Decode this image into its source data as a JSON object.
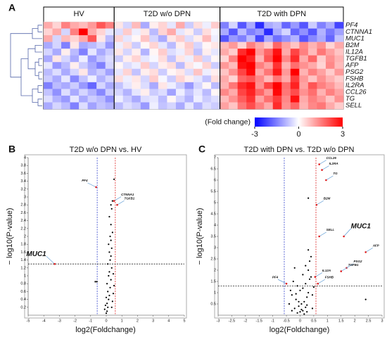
{
  "chart_data": [
    {
      "type": "heatmap",
      "panel": "A",
      "rows": [
        "PF4",
        "CTNNA1",
        "MUC1",
        "B2M",
        "IL12A",
        "TGFB1",
        "AFP",
        "PSG2",
        "FSHB",
        "IL2RA",
        "CCL26",
        "TG",
        "SELL"
      ],
      "groups": [
        {
          "name": "HV",
          "values": [
            [
              1,
              0.5,
              1.5,
              1,
              0.8,
              1.2,
              2,
              1.5
            ],
            [
              0.5,
              1,
              -0.5,
              1.5,
              3,
              1,
              0.5,
              -0.3
            ],
            [
              1,
              -0.5,
              0.8,
              0.5,
              1,
              2,
              0.3,
              -0.8
            ],
            [
              -1,
              -0.5,
              -1.5,
              0.3,
              -1,
              -0.8,
              -0.5,
              -1.2
            ],
            [
              -0.5,
              -1,
              0.2,
              -0.8,
              -1.5,
              -0.3,
              -1,
              -0.6
            ],
            [
              -1,
              0.3,
              -0.5,
              -1,
              -0.2,
              -1.2,
              -0.7,
              -0.4
            ],
            [
              -0.3,
              -1.2,
              -0.8,
              0.2,
              -0.6,
              -1,
              -1.5,
              -0.5
            ],
            [
              -0.8,
              -0.4,
              -1,
              -0.5,
              0.3,
              -0.9,
              -0.6,
              -1.1
            ],
            [
              -0.6,
              -1,
              -0.3,
              -1.4,
              -0.7,
              -0.2,
              -0.9,
              -0.5
            ],
            [
              -1.5,
              -0.8,
              -1,
              -0.6,
              -1.2,
              -1.8,
              -0.5,
              -1
            ],
            [
              -0.7,
              -1.3,
              -0.4,
              -1,
              -0.5,
              -0.9,
              -1.4,
              -0.6
            ],
            [
              -0.4,
              -0.9,
              -1.2,
              -0.3,
              -1,
              -0.6,
              -0.8,
              -1.3
            ],
            [
              -1,
              -0.5,
              -0.8,
              -1.5,
              -0.4,
              -1.1,
              -0.7,
              -0.9
            ]
          ]
        },
        {
          "name": "T2D w/o DPN",
          "values": [
            [
              0.3,
              -0.5,
              0.8,
              -1,
              0.2,
              0.5,
              -0.3,
              1,
              -0.6,
              0.4,
              -0.2,
              0.6
            ],
            [
              -0.4,
              0.6,
              -0.2,
              0.3,
              -0.8,
              0.5,
              1,
              -0.3,
              0.2,
              -0.6,
              0.4,
              -0.1
            ],
            [
              0.5,
              -0.3,
              0.1,
              0.7,
              -0.5,
              -1,
              0.3,
              0.6,
              -0.4,
              0.2,
              0.8,
              -0.2
            ],
            [
              -0.2,
              0.4,
              -0.6,
              0.1,
              0.5,
              -0.3,
              -0.8,
              0.2,
              0.6,
              -0.5,
              0.1,
              0.3
            ],
            [
              0.3,
              -0.5,
              0.2,
              -0.9,
              0.1,
              0.6,
              -0.4,
              -0.2,
              0.5,
              -0.7,
              0.2,
              -0.3
            ],
            [
              -0.6,
              0.2,
              0.5,
              -0.3,
              -0.1,
              0.4,
              -0.7,
              0.3,
              -0.2,
              0.6,
              -0.5,
              0.1
            ],
            [
              0.1,
              -0.4,
              -0.2,
              0.6,
              -0.5,
              0.2,
              0.4,
              -0.8,
              0.3,
              -0.1,
              0.5,
              -0.6
            ],
            [
              -0.3,
              0.5,
              -0.7,
              0.2,
              0.4,
              -0.6,
              0.1,
              0.3,
              -0.4,
              0.7,
              -0.2,
              0.2
            ],
            [
              0.4,
              -0.2,
              0.3,
              -0.5,
              0.6,
              -0.1,
              -0.6,
              0.5,
              0.2,
              -0.3,
              -0.7,
              0.4
            ],
            [
              -0.7,
              -0.3,
              0.2,
              -0.4,
              -1,
              0.3,
              -0.2,
              -0.6,
              -1.2,
              -0.5,
              0.1,
              -0.8
            ],
            [
              -0.5,
              -0.9,
              -0.3,
              0.2,
              -0.6,
              -0.4,
              -1.1,
              -0.2,
              -0.7,
              -0.3,
              -0.8,
              0.1
            ],
            [
              -0.2,
              -0.6,
              -1,
              -0.4,
              -0.3,
              -0.8,
              0.1,
              -0.5,
              -0.9,
              -0.2,
              -0.6,
              -0.4
            ],
            [
              -0.8,
              -0.4,
              -0.6,
              -1.2,
              -0.2,
              -0.7,
              -0.5,
              -1,
              -0.3,
              -0.9,
              -0.4,
              -0.6
            ]
          ]
        },
        {
          "name": "T2D with DPN",
          "values": [
            [
              -1.5,
              -0.5,
              -2,
              -1,
              -2.5,
              -1,
              -0.8,
              -1.8,
              -1.2,
              -2,
              -0.6,
              -1.5,
              -1,
              -2.2
            ],
            [
              -1,
              -2,
              -0.8,
              -1.5,
              -1.2,
              -2.5,
              -1,
              -0.5,
              -1.8,
              -1.3,
              -2,
              -0.9,
              -1.6,
              -1.1
            ],
            [
              -2,
              -1.2,
              -1.5,
              -0.8,
              -2.2,
              -1,
              -1.7,
              -1.3,
              -0.9,
              -2,
              -1.4,
              -1,
              -1.8,
              -0.7
            ],
            [
              0.8,
              1.2,
              0.5,
              1.5,
              1,
              0.6,
              1.8,
              1.1,
              0.7,
              1.4,
              0.9,
              1.3,
              0.5,
              1
            ],
            [
              1,
              0.6,
              2.5,
              3,
              1.2,
              1.8,
              2.8,
              1,
              2.2,
              1.5,
              0.8,
              1.6,
              1.1,
              0.7
            ],
            [
              0.5,
              1.5,
              3,
              2.6,
              0.9,
              2,
              3,
              1.4,
              2.5,
              1,
              1.8,
              0.6,
              1.3,
              0.9
            ],
            [
              1.2,
              0.8,
              2.8,
              3,
              1.5,
              1.1,
              2.4,
              0.9,
              1.7,
              1.3,
              1,
              0.5,
              1.4,
              0.8
            ],
            [
              0.7,
              1.3,
              2.2,
              2.9,
              1,
              1.6,
              2.7,
              1.2,
              3,
              0.9,
              1.5,
              1.1,
              0.6,
              1.2
            ],
            [
              1,
              0.5,
              1.8,
              2,
              1.4,
              0.8,
              1.6,
              1,
              2.3,
              1.2,
              0.7,
              1.3,
              0.9,
              0.6
            ],
            [
              0.9,
              1.6,
              2.5,
              2.8,
              1.3,
              2.2,
              3,
              1.7,
              2.6,
              1.1,
              2,
              1.5,
              1.2,
              0.8
            ],
            [
              1.4,
              1,
              2.2,
              2.6,
              1.8,
              1.2,
              2.9,
              1.6,
              2.1,
              1.3,
              1.7,
              0.9,
              1.5,
              1.1
            ],
            [
              0.8,
              1.3,
              1.9,
              2.4,
              1.1,
              1.7,
              2.3,
              1.4,
              2.8,
              1,
              1.5,
              1.2,
              0.7,
              1.3
            ],
            [
              1.1,
              0.7,
              1.6,
              2.1,
              1.5,
              1,
              2.5,
              1.3,
              1.8,
              0.9,
              1.4,
              1.6,
              1,
              0.6
            ]
          ]
        }
      ],
      "clim": [
        -3,
        3
      ],
      "colors": [
        "#0000ff",
        "#ffffff",
        "#ff0000"
      ],
      "colorbar_label": "(Fold change)",
      "colorbar_ticks": [
        -3,
        0,
        3
      ]
    },
    {
      "type": "volcano",
      "panel": "B",
      "title": "T2D w/o DPN vs. HV",
      "xlabel": "log2(Foldchange)",
      "ylabel": "− log10(P-value)",
      "xlim": [
        -5,
        5
      ],
      "xticks": [
        -5,
        -4,
        -3,
        -2,
        -1,
        0,
        1,
        2,
        3,
        4,
        5
      ],
      "ylim": [
        0,
        4
      ],
      "yticks": [
        0.2,
        0.4,
        0.6,
        0.8,
        1,
        1.2,
        1.4,
        1.6,
        1.8,
        2,
        2.2,
        2.4,
        2.6,
        2.8,
        3,
        3.2,
        3.4,
        3.6,
        3.8,
        4
      ],
      "thresholds": {
        "x": [
          -0.58,
          0.58
        ],
        "y": 1.3,
        "colors": [
          "#3344cc",
          "#dd2222",
          "#222222"
        ]
      },
      "color": "#000000",
      "series": [
        {
          "x": [
            0.1,
            0.05,
            0.15,
            0.2,
            0.1,
            0.25,
            0.05,
            0.3,
            0.15,
            0.2,
            0.35,
            0.1,
            0.25,
            0.3,
            0.2,
            0.35,
            0.15,
            0.3,
            0.25,
            0.4,
            0.3,
            0.2,
            0.35,
            0.3,
            0.4,
            0.05,
            -0.05,
            0.4,
            0.45,
            0,
            -0.1,
            0.5,
            -0.6,
            -0.7,
            0.45,
            0,
            0.35,
            0.5
          ],
          "y": [
            0.2,
            0.3,
            0.4,
            0.5,
            0.6,
            0.7,
            0.8,
            0.9,
            1,
            1.1,
            1.2,
            1.3,
            1.4,
            1.5,
            1.6,
            1.7,
            1.8,
            1.9,
            2,
            2.1,
            2.3,
            2.5,
            2.7,
            2.8,
            2.9,
            0.1,
            0.25,
            0.35,
            0.55,
            0.45,
            0.15,
            0.75,
            0.85,
            0.85,
            1.05,
            0.05,
            0.2,
            3.45
          ]
        }
      ],
      "annotations": [
        {
          "text": "PF4",
          "x": -0.65,
          "y": 3.25
        },
        {
          "text": "CTNNA1",
          "x": 0.5,
          "y": 2.9
        },
        {
          "text": "TGFB1",
          "x": 0.7,
          "y": 2.8
        },
        {
          "text": "MUC1",
          "x": -3.3,
          "y": 1.3,
          "bold": true
        }
      ]
    },
    {
      "type": "volcano",
      "panel": "C",
      "title": "T2D with DPN vs. T2D w/o DPN",
      "xlabel": "log2(Foldchange)",
      "ylabel": "− log10(P-value)",
      "xlim": [
        -3,
        3
      ],
      "xticks": [
        -3,
        -2.5,
        -2,
        -1.5,
        -1,
        -0.5,
        0,
        0.5,
        1,
        1.5,
        2,
        2.5,
        3
      ],
      "ylim": [
        0,
        7
      ],
      "yticks": [
        0.5,
        1,
        1.5,
        2,
        2.5,
        3,
        3.5,
        4,
        4.5,
        5,
        5.5,
        6,
        6.5,
        7
      ],
      "thresholds": {
        "x": [
          -0.58,
          0.58
        ],
        "y": 1.3,
        "colors": [
          "#3344cc",
          "#dd2222",
          "#222222"
        ]
      },
      "color": "#000000",
      "series": [
        {
          "x": [
            -0.1,
            0,
            0.1,
            -0.2,
            0.2,
            -0.05,
            0.05,
            0.15,
            -0.15,
            0.25,
            -0.3,
            0.3,
            0,
            0.1,
            -0.1,
            0.2,
            -0.25,
            0.35,
            0.4,
            -0.35,
            0.05,
            0.15,
            -0.05,
            0.25,
            0.45,
            -0.4,
            0.1,
            0.3,
            0.2,
            -0.2,
            0.5,
            0.35,
            0.4,
            0.3,
            0.3,
            2.4,
            -0.3,
            0.45,
            0.25,
            -0.15
          ],
          "y": [
            0.1,
            0.15,
            0.2,
            0.3,
            0.35,
            0.4,
            0.5,
            0.6,
            0.7,
            0.8,
            0.9,
            1,
            1.1,
            1.2,
            1.3,
            1.4,
            1.5,
            1.6,
            1.7,
            1.1,
            0.25,
            0.05,
            0.6,
            0.45,
            0.9,
            0.5,
            1.8,
            2,
            2.2,
            2.1,
            1.25,
            2.4,
            2.6,
            2.9,
            5.2,
            0.7,
            0.2,
            0.3,
            0.15,
            0.95
          ]
        }
      ],
      "annotations": [
        {
          "text": "CCL26",
          "x": 0.7,
          "y": 6.7
        },
        {
          "text": "IL2RA",
          "x": 0.8,
          "y": 6.45
        },
        {
          "text": "TG",
          "x": 0.95,
          "y": 6
        },
        {
          "text": "B2M",
          "x": 0.6,
          "y": 4.9
        },
        {
          "text": "SELL",
          "x": 0.7,
          "y": 3.5
        },
        {
          "text": "MUC1",
          "x": 1.6,
          "y": 3.5,
          "bold": true
        },
        {
          "text": "AFP",
          "x": 2.4,
          "y": 2.8
        },
        {
          "text": "PSG2",
          "x": 1.7,
          "y": 2.1
        },
        {
          "text": "TGFB1",
          "x": 1.5,
          "y": 1.95
        },
        {
          "text": "IL12A",
          "x": 0.55,
          "y": 1.7
        },
        {
          "text": "FSHB",
          "x": 0.65,
          "y": 1.4
        },
        {
          "text": "PF4",
          "x": -0.5,
          "y": 1.4
        }
      ]
    }
  ]
}
